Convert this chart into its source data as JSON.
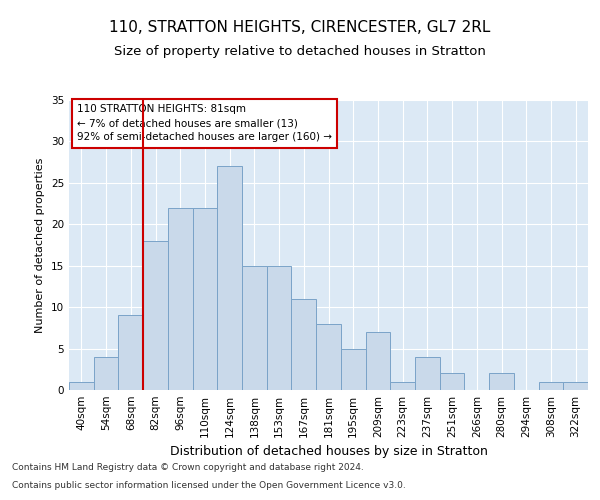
{
  "title_line1": "110, STRATTON HEIGHTS, CIRENCESTER, GL7 2RL",
  "title_line2": "Size of property relative to detached houses in Stratton",
  "xlabel": "Distribution of detached houses by size in Stratton",
  "ylabel": "Number of detached properties",
  "categories": [
    "40sqm",
    "54sqm",
    "68sqm",
    "82sqm",
    "96sqm",
    "110sqm",
    "124sqm",
    "138sqm",
    "153sqm",
    "167sqm",
    "181sqm",
    "195sqm",
    "209sqm",
    "223sqm",
    "237sqm",
    "251sqm",
    "266sqm",
    "280sqm",
    "294sqm",
    "308sqm",
    "322sqm"
  ],
  "values": [
    1,
    4,
    9,
    18,
    22,
    22,
    27,
    15,
    15,
    11,
    8,
    5,
    7,
    1,
    4,
    2,
    0,
    2,
    0,
    1,
    1
  ],
  "bar_color": "#c9d9ea",
  "bar_edge_color": "#7aa3c8",
  "vline_color": "#cc0000",
  "vline_x_index": 3,
  "annotation_text": "110 STRATTON HEIGHTS: 81sqm\n← 7% of detached houses are smaller (13)\n92% of semi-detached houses are larger (160) →",
  "annotation_box_color": "#ffffff",
  "annotation_box_edge": "#cc0000",
  "ylim": [
    0,
    35
  ],
  "yticks": [
    0,
    5,
    10,
    15,
    20,
    25,
    30,
    35
  ],
  "plot_bg_color": "#dce9f5",
  "fig_bg_color": "#ffffff",
  "footer_line1": "Contains HM Land Registry data © Crown copyright and database right 2024.",
  "footer_line2": "Contains public sector information licensed under the Open Government Licence v3.0.",
  "title1_fontsize": 11,
  "title2_fontsize": 9.5,
  "xlabel_fontsize": 9,
  "ylabel_fontsize": 8,
  "tick_fontsize": 7.5,
  "annot_fontsize": 7.5,
  "footer_fontsize": 6.5
}
